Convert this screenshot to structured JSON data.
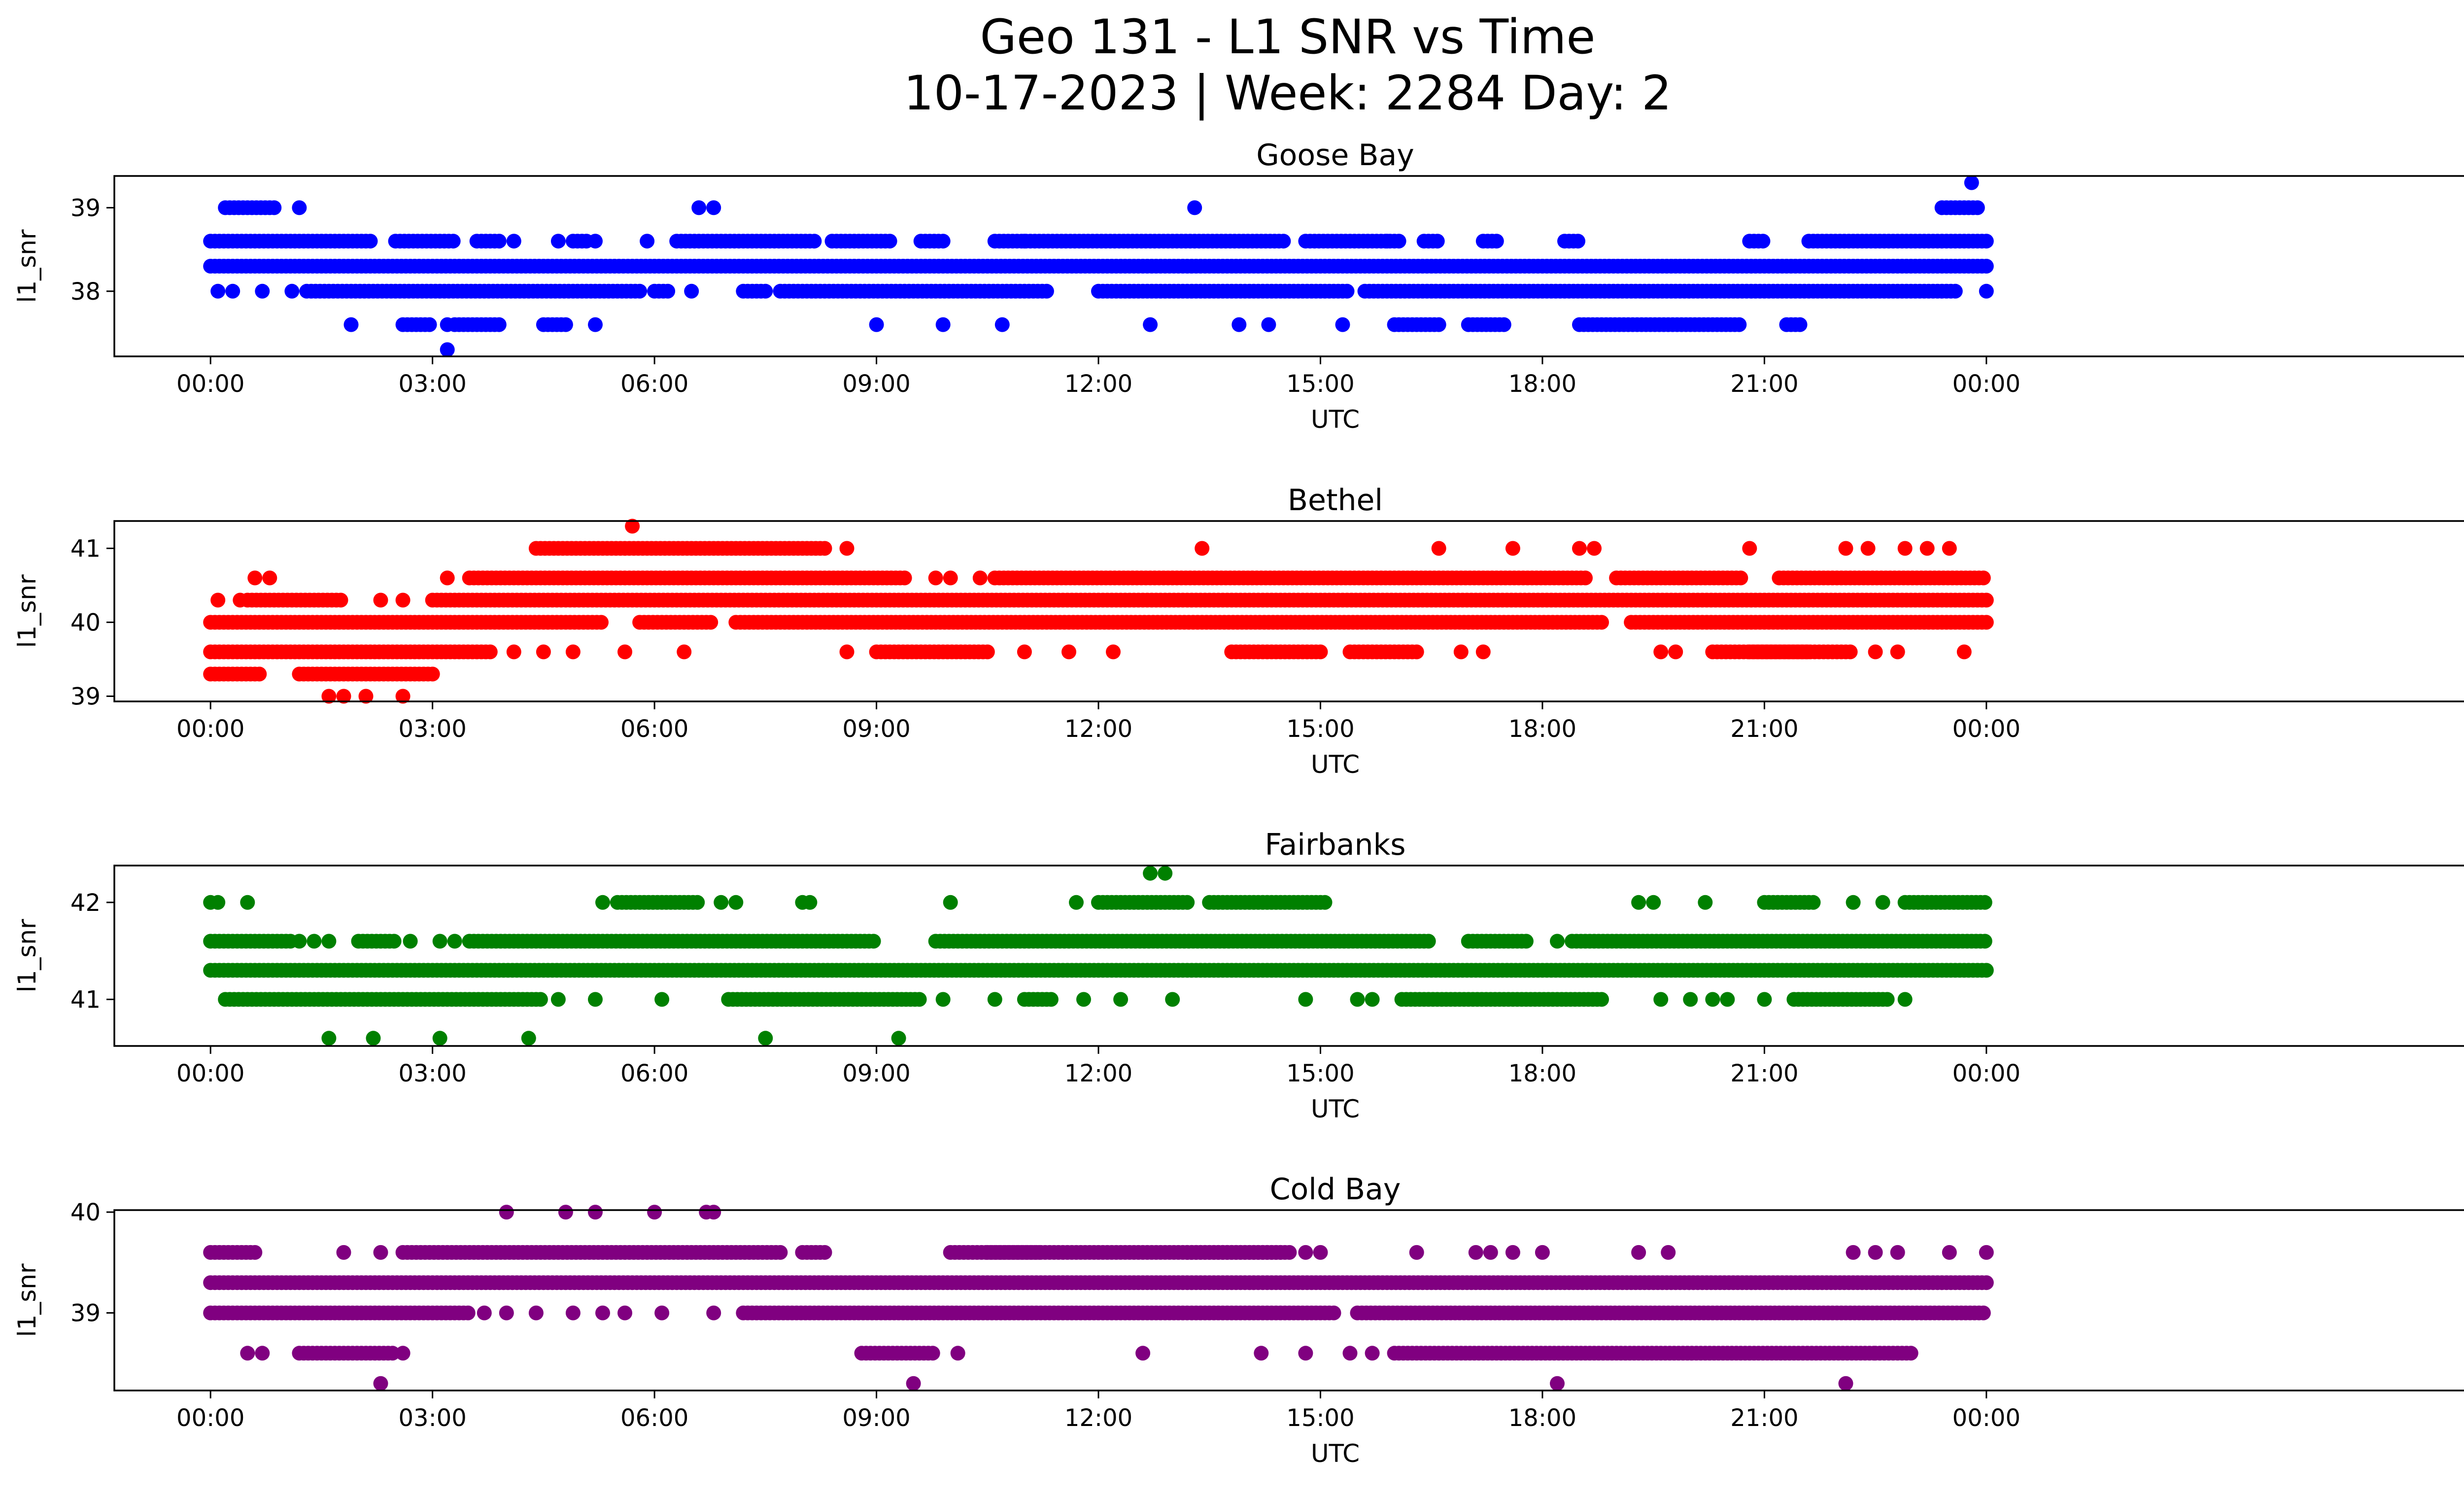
{
  "title_line1": "Geo 131 - L1 SNR vs Time",
  "title_line2": "10-17-2023 | Week: 2284 Day: 2",
  "chart_data": [
    {
      "type": "scatter",
      "title": "Goose Bay",
      "color": "#0000ff",
      "xlabel": "UTC",
      "ylabel": "l1_snr",
      "xlim_hours": [
        -1.3,
        31.7
      ],
      "ylim": [
        37.22,
        39.38
      ],
      "xticks": [
        "00:00",
        "03:00",
        "06:00",
        "09:00",
        "12:00",
        "15:00",
        "18:00",
        "21:00",
        "00:00"
      ],
      "yticks": [
        38,
        39
      ],
      "levels": [
        {
          "y": 38.6,
          "ranges": [
            [
              0.0,
              2.2
            ],
            [
              2.5,
              3.3
            ],
            [
              3.6,
              3.9
            ],
            [
              4.9,
              5.1
            ],
            [
              6.3,
              8.2
            ],
            [
              8.4,
              9.2
            ],
            [
              9.6,
              9.9
            ],
            [
              10.6,
              14.5
            ],
            [
              14.8,
              16.1
            ],
            [
              16.4,
              16.6
            ],
            [
              17.2,
              17.4
            ],
            [
              18.3,
              18.5
            ],
            [
              20.8,
              21.0
            ],
            [
              21.6,
              24.0
            ]
          ],
          "points": [
            4.1,
            4.7,
            5.2,
            5.9,
            11.0,
            15.9
          ]
        },
        {
          "y": 38.3,
          "ranges": [
            [
              0.0,
              24.0
            ]
          ]
        },
        {
          "y": 38.0,
          "ranges": [
            [
              1.3,
              5.8
            ],
            [
              6.0,
              6.2
            ],
            [
              7.2,
              7.5
            ],
            [
              7.7,
              11.3
            ],
            [
              12.0,
              15.4
            ],
            [
              15.6,
              23.6
            ]
          ],
          "points": [
            0.1,
            0.3,
            0.7,
            1.1,
            6.5,
            24.0
          ]
        },
        {
          "y": 37.6,
          "ranges": [
            [
              2.6,
              3.0
            ],
            [
              3.3,
              3.9
            ],
            [
              4.5,
              4.8
            ],
            [
              16.0,
              16.6
            ],
            [
              17.0,
              17.5
            ],
            [
              18.5,
              20.7
            ],
            [
              21.3,
              21.5
            ]
          ],
          "points": [
            1.9,
            3.2,
            5.2,
            9.0,
            9.9,
            10.7,
            12.7,
            13.9,
            14.3,
            15.3
          ],
          "note": ""
        },
        {
          "y": 39.0,
          "ranges": [
            [
              0.2,
              0.9
            ],
            [
              23.4,
              23.9
            ]
          ],
          "points": [
            1.2,
            6.6,
            6.8,
            13.3
          ]
        },
        {
          "y": 39.3,
          "points": [
            23.8
          ]
        },
        {
          "y": 37.3,
          "points": [
            3.2
          ]
        }
      ]
    },
    {
      "type": "scatter",
      "title": "Bethel",
      "color": "#ff0000",
      "xlabel": "UTC",
      "ylabel": "l1_snr",
      "xlim_hours": [
        -1.3,
        31.7
      ],
      "ylim": [
        38.93,
        41.37
      ],
      "xticks": [
        "00:00",
        "03:00",
        "06:00",
        "09:00",
        "12:00",
        "15:00",
        "18:00",
        "21:00",
        "00:00"
      ],
      "yticks": [
        39,
        40,
        41
      ],
      "levels": [
        {
          "y": 41.0,
          "ranges": [
            [
              4.4,
              8.3
            ]
          ],
          "points": [
            8.6,
            13.4,
            16.6,
            17.6,
            18.5,
            18.7,
            20.8,
            22.1,
            22.4,
            22.9,
            23.2,
            23.5
          ]
        },
        {
          "y": 41.3,
          "points": [
            5.7
          ]
        },
        {
          "y": 40.6,
          "ranges": [
            [
              3.5,
              9.4
            ],
            [
              10.6,
              18.6
            ],
            [
              19.0,
              20.7
            ],
            [
              21.2,
              24.0
            ]
          ],
          "points": [
            0.6,
            0.8,
            3.2,
            9.8,
            10.0,
            10.4
          ]
        },
        {
          "y": 40.3,
          "ranges": [
            [
              0.5,
              1.8
            ],
            [
              3.0,
              24.0
            ]
          ],
          "points": [
            0.1,
            0.4,
            2.3,
            2.6
          ]
        },
        {
          "y": 40.0,
          "ranges": [
            [
              0.0,
              5.3
            ],
            [
              5.8,
              6.8
            ],
            [
              7.1,
              18.8
            ],
            [
              19.2,
              24.0
            ]
          ]
        },
        {
          "y": 39.6,
          "ranges": [
            [
              0.0,
              3.8
            ],
            [
              9.0,
              10.5
            ],
            [
              13.8,
              15.0
            ],
            [
              15.4,
              16.3
            ],
            [
              20.3,
              22.2
            ],
            [
              20.8,
              21.6
            ]
          ],
          "points": [
            4.1,
            4.5,
            4.9,
            5.6,
            6.4,
            8.6,
            11.0,
            11.6,
            12.2,
            16.9,
            17.2,
            19.6,
            19.8,
            22.5,
            22.8,
            23.7
          ]
        },
        {
          "y": 39.3,
          "ranges": [
            [
              0.0,
              0.7
            ],
            [
              1.2,
              3.0
            ]
          ]
        },
        {
          "y": 39.0,
          "points": [
            1.6,
            1.8,
            2.1,
            2.6
          ]
        }
      ]
    },
    {
      "type": "scatter",
      "title": "Fairbanks",
      "color": "#008000",
      "xlabel": "UTC",
      "ylabel": "l1_snr",
      "xlim_hours": [
        -1.3,
        31.7
      ],
      "ylim": [
        40.52,
        42.38
      ],
      "xticks": [
        "00:00",
        "03:00",
        "06:00",
        "09:00",
        "12:00",
        "15:00",
        "18:00",
        "21:00",
        "00:00"
      ],
      "yticks": [
        41,
        42
      ],
      "levels": [
        {
          "y": 42.0,
          "ranges": [
            [
              5.5,
              6.6
            ],
            [
              12.0,
              13.2
            ],
            [
              13.5,
              15.1
            ],
            [
              21.0,
              21.7
            ],
            [
              22.9,
              24.0
            ]
          ],
          "points": [
            0.0,
            0.1,
            0.5,
            5.3,
            6.9,
            7.1,
            8.0,
            8.1,
            10.0,
            11.7,
            19.3,
            19.5,
            20.2,
            22.2,
            22.6
          ]
        },
        {
          "y": 42.3,
          "points": [
            12.7,
            12.9
          ]
        },
        {
          "y": 41.6,
          "ranges": [
            [
              0.0,
              1.1
            ],
            [
              2.0,
              2.5
            ],
            [
              3.5,
              9.0
            ],
            [
              9.8,
              16.5
            ],
            [
              17.0,
              17.8
            ],
            [
              18.4,
              24.0
            ]
          ],
          "points": [
            1.2,
            1.4,
            1.6,
            2.7,
            3.1,
            3.3,
            18.2
          ]
        },
        {
          "y": 41.3,
          "ranges": [
            [
              0.0,
              24.0
            ]
          ]
        },
        {
          "y": 41.0,
          "ranges": [
            [
              0.2,
              4.5
            ],
            [
              7.0,
              9.6
            ],
            [
              11.0,
              11.4
            ],
            [
              16.1,
              18.8
            ],
            [
              21.4,
              22.7
            ]
          ],
          "points": [
            4.7,
            5.2,
            6.1,
            9.9,
            10.6,
            11.8,
            12.3,
            13.0,
            14.8,
            15.5,
            15.7,
            19.6,
            20.0,
            20.3,
            20.5,
            21.0,
            22.9
          ]
        },
        {
          "y": 40.6,
          "points": [
            1.6,
            2.2,
            3.1,
            4.3,
            7.5,
            9.3
          ]
        }
      ]
    },
    {
      "type": "scatter",
      "title": "Cold Bay",
      "color": "#800080",
      "xlabel": "UTC",
      "ylabel": "l1_snr",
      "xlim_hours": [
        -1.3,
        31.7
      ],
      "ylim": [
        38.23,
        40.02
      ],
      "xticks": [
        "00:00",
        "03:00",
        "06:00",
        "09:00",
        "12:00",
        "15:00",
        "18:00",
        "21:00",
        "00:00"
      ],
      "yticks": [
        39,
        40
      ],
      "levels": [
        {
          "y": 40.0,
          "points": [
            4.0,
            4.8,
            5.2,
            6.0,
            6.7,
            6.8
          ]
        },
        {
          "y": 39.6,
          "ranges": [
            [
              0.0,
              0.6
            ],
            [
              2.6,
              7.7
            ],
            [
              8.0,
              8.3
            ],
            [
              10.0,
              11.2
            ],
            [
              10.5,
              14.5
            ],
            [
              13.2,
              14.6
            ]
          ],
          "points": [
            1.8,
            2.3,
            14.8,
            15.0,
            16.3,
            17.1,
            17.3,
            17.6,
            18.0,
            19.3,
            19.7,
            22.2,
            22.5,
            22.8,
            23.5,
            24.0
          ]
        },
        {
          "y": 39.3,
          "ranges": [
            [
              0.0,
              24.0
            ]
          ]
        },
        {
          "y": 39.0,
          "ranges": [
            [
              0.0,
              3.5
            ],
            [
              7.2,
              15.2
            ],
            [
              15.5,
              24.0
            ]
          ],
          "points": [
            3.7,
            4.0,
            4.4,
            4.9,
            5.3,
            5.6,
            6.1,
            6.8
          ]
        },
        {
          "y": 38.6,
          "ranges": [
            [
              1.2,
              2.5
            ],
            [
              8.8,
              9.8
            ],
            [
              16.0,
              22.5
            ],
            [
              22.5,
              23.0
            ]
          ],
          "points": [
            0.5,
            0.7,
            2.6,
            10.1,
            12.6,
            14.2,
            14.8,
            15.4,
            15.7
          ]
        },
        {
          "y": 38.3,
          "points": [
            2.3,
            9.5,
            18.2,
            22.1
          ]
        }
      ]
    }
  ]
}
